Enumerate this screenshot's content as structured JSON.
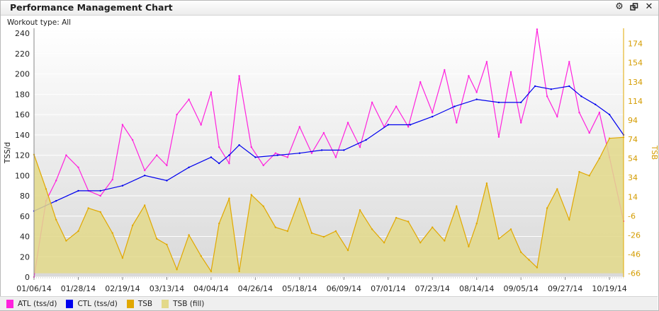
{
  "window": {
    "title": "Performance Management Chart",
    "icons": [
      "gear-icon",
      "restore-icon",
      "close-icon"
    ]
  },
  "filter": {
    "label": "Workout type: All"
  },
  "chart_data": {
    "type": "line",
    "title": "Performance Management Chart",
    "ylabel_left": "TSS/d",
    "ylabel_right": "TSB",
    "y_left_range": [
      0,
      245
    ],
    "y_left_ticks": [
      "0",
      "20",
      "40",
      "60",
      "80",
      "100",
      "120",
      "140",
      "160",
      "180",
      "200",
      "220",
      "240"
    ],
    "y_right_range": [
      -70,
      190
    ],
    "y_right_ticks": [
      "-66",
      "-46",
      "-26",
      "-6",
      "14",
      "34",
      "54",
      "74",
      "94",
      "114",
      "134",
      "154",
      "174"
    ],
    "x_start": "2014-01-06",
    "x_end": "2014-10-26",
    "x_tick_labels": [
      "01/06/14",
      "01/28/14",
      "02/19/14",
      "03/13/14",
      "04/04/14",
      "04/26/14",
      "05/18/14",
      "06/09/14",
      "07/01/14",
      "07/23/14",
      "08/14/14",
      "09/05/14",
      "09/27/14",
      "10/19/14"
    ],
    "grid": true,
    "legend_position": "bottom",
    "series": [
      {
        "name": "ATL (tss/d)",
        "color": "#ff22dd",
        "axis": "left",
        "x": [
          "2014-01-06",
          "2014-01-12",
          "2014-01-17",
          "2014-01-22",
          "2014-01-28",
          "2014-02-02",
          "2014-02-08",
          "2014-02-14",
          "2014-02-19",
          "2014-02-24",
          "2014-03-02",
          "2014-03-08",
          "2014-03-13",
          "2014-03-18",
          "2014-03-24",
          "2014-03-30",
          "2014-04-04",
          "2014-04-08",
          "2014-04-13",
          "2014-04-18",
          "2014-04-24",
          "2014-04-30",
          "2014-05-06",
          "2014-05-12",
          "2014-05-18",
          "2014-05-24",
          "2014-05-30",
          "2014-06-05",
          "2014-06-11",
          "2014-06-17",
          "2014-06-23",
          "2014-06-29",
          "2014-07-05",
          "2014-07-11",
          "2014-07-17",
          "2014-07-23",
          "2014-07-29",
          "2014-08-04",
          "2014-08-10",
          "2014-08-14",
          "2014-08-19",
          "2014-08-25",
          "2014-08-31",
          "2014-09-05",
          "2014-09-09",
          "2014-09-13",
          "2014-09-18",
          "2014-09-23",
          "2014-09-29",
          "2014-10-04",
          "2014-10-09",
          "2014-10-14",
          "2014-10-19",
          "2014-10-26"
        ],
        "values": [
          0,
          75,
          95,
          120,
          108,
          85,
          80,
          96,
          150,
          135,
          105,
          120,
          110,
          160,
          175,
          150,
          182,
          128,
          112,
          198,
          128,
          110,
          122,
          118,
          148,
          122,
          142,
          118,
          152,
          128,
          172,
          148,
          168,
          148,
          192,
          162,
          204,
          152,
          198,
          182,
          212,
          138,
          202,
          152,
          182,
          244,
          178,
          158,
          212,
          162,
          142,
          162,
          118,
          55
        ]
      },
      {
        "name": "CTL (tss/d)",
        "color": "#0000ee",
        "axis": "left",
        "x": [
          "2014-01-06",
          "2014-01-17",
          "2014-01-28",
          "2014-02-08",
          "2014-02-19",
          "2014-03-02",
          "2014-03-13",
          "2014-03-24",
          "2014-04-04",
          "2014-04-08",
          "2014-04-13",
          "2014-04-18",
          "2014-04-26",
          "2014-05-07",
          "2014-05-18",
          "2014-05-29",
          "2014-06-09",
          "2014-06-20",
          "2014-07-01",
          "2014-07-12",
          "2014-07-23",
          "2014-08-03",
          "2014-08-14",
          "2014-08-25",
          "2014-09-05",
          "2014-09-12",
          "2014-09-20",
          "2014-09-29",
          "2014-10-05",
          "2014-10-12",
          "2014-10-19",
          "2014-10-26"
        ],
        "values": [
          65,
          75,
          85,
          85,
          90,
          100,
          95,
          108,
          118,
          112,
          120,
          130,
          118,
          120,
          122,
          125,
          125,
          135,
          150,
          150,
          158,
          168,
          175,
          172,
          172,
          188,
          185,
          188,
          178,
          170,
          160,
          140
        ]
      },
      {
        "name": "TSB",
        "color": "#e1a800",
        "axis": "right",
        "x": [
          "2014-01-06",
          "2014-01-12",
          "2014-01-17",
          "2014-01-22",
          "2014-01-28",
          "2014-02-02",
          "2014-02-08",
          "2014-02-14",
          "2014-02-19",
          "2014-02-24",
          "2014-03-02",
          "2014-03-08",
          "2014-03-13",
          "2014-03-18",
          "2014-03-24",
          "2014-03-30",
          "2014-04-04",
          "2014-04-08",
          "2014-04-13",
          "2014-04-18",
          "2014-04-24",
          "2014-04-30",
          "2014-05-06",
          "2014-05-12",
          "2014-05-18",
          "2014-05-24",
          "2014-05-30",
          "2014-06-05",
          "2014-06-11",
          "2014-06-17",
          "2014-06-23",
          "2014-06-29",
          "2014-07-05",
          "2014-07-11",
          "2014-07-17",
          "2014-07-23",
          "2014-07-29",
          "2014-08-04",
          "2014-08-10",
          "2014-08-14",
          "2014-08-19",
          "2014-08-25",
          "2014-08-31",
          "2014-09-05",
          "2014-09-09",
          "2014-09-13",
          "2014-09-18",
          "2014-09-23",
          "2014-09-29",
          "2014-10-04",
          "2014-10-09",
          "2014-10-14",
          "2014-10-19",
          "2014-10-26"
        ],
        "values": [
          58,
          22,
          -10,
          -32,
          -22,
          2,
          -2,
          -24,
          -50,
          -16,
          5,
          -30,
          -36,
          -62,
          -26,
          -48,
          -64,
          -14,
          12,
          -64,
          16,
          4,
          -18,
          -22,
          12,
          -24,
          -28,
          -22,
          -42,
          0,
          -20,
          -34,
          -8,
          -12,
          -34,
          -18,
          -32,
          4,
          -38,
          -14,
          28,
          -30,
          -20,
          -44,
          -52,
          -60,
          2,
          22,
          -10,
          40,
          36,
          54,
          75,
          76
        ]
      }
    ]
  }
}
